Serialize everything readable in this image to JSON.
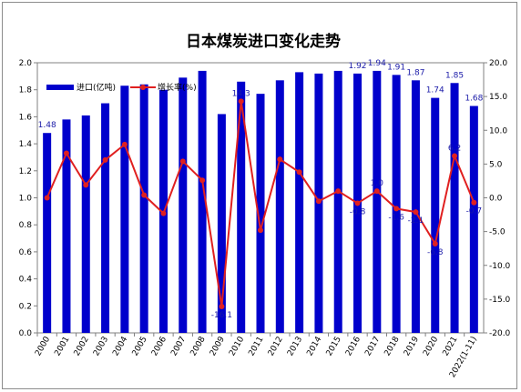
{
  "chart_data": {
    "type": "bar",
    "title": "日本煤炭进口变化走势",
    "categories": [
      "2000",
      "2001",
      "2002",
      "2003",
      "2004",
      "2005",
      "2006",
      "2007",
      "2008",
      "2009",
      "2010",
      "2011",
      "2012",
      "2013",
      "2014",
      "2015",
      "2016",
      "2017",
      "2018",
      "2019",
      "2020",
      "2021",
      "2022(1-11)"
    ],
    "series": [
      {
        "name": "进口(亿吨)",
        "type": "bar",
        "axis": "left",
        "color": "#0000cc",
        "values": [
          1.48,
          1.58,
          1.61,
          1.7,
          1.83,
          1.84,
          1.8,
          1.89,
          1.94,
          1.62,
          1.86,
          1.77,
          1.87,
          1.93,
          1.92,
          1.94,
          1.92,
          1.94,
          1.91,
          1.87,
          1.74,
          1.85,
          1.68
        ]
      },
      {
        "name": "增长率(%)",
        "type": "line",
        "axis": "right",
        "color": "#e02020",
        "values": [
          0.0,
          6.6,
          1.9,
          5.6,
          7.9,
          0.4,
          -2.3,
          5.4,
          2.6,
          -16.1,
          14.3,
          -4.8,
          5.7,
          3.8,
          -0.5,
          1.0,
          -0.8,
          1.0,
          -1.6,
          -2.1,
          -6.8,
          6.2,
          -0.7
        ]
      }
    ],
    "bar_labels": [
      {
        "index": 0,
        "text": "1.48"
      },
      {
        "index": 16,
        "text": "1.92"
      },
      {
        "index": 17,
        "text": "1.94"
      },
      {
        "index": 18,
        "text": "1.91"
      },
      {
        "index": 19,
        "text": "1.87"
      },
      {
        "index": 20,
        "text": "1.74"
      },
      {
        "index": 21,
        "text": "1.85"
      },
      {
        "index": 22,
        "text": "1.68"
      }
    ],
    "line_labels": [
      {
        "index": 9,
        "text": "-16.1"
      },
      {
        "index": 10,
        "text": "14.3"
      },
      {
        "index": 16,
        "text": "-0.8"
      },
      {
        "index": 17,
        "text": "1.0"
      },
      {
        "index": 18,
        "text": "-1.6"
      },
      {
        "index": 19,
        "text": "-2.1"
      },
      {
        "index": 20,
        "text": "-6.8"
      },
      {
        "index": 21,
        "text": "6.2"
      },
      {
        "index": 22,
        "text": "-0.7"
      }
    ],
    "y_left": {
      "min": 0.0,
      "max": 2.0,
      "step": 0.2,
      "ticks": [
        "0.0",
        "0.2",
        "0.4",
        "0.6",
        "0.8",
        "1.0",
        "1.2",
        "1.4",
        "1.6",
        "1.8",
        "2.0"
      ]
    },
    "y_right": {
      "min": -20.0,
      "max": 20.0,
      "step": 5.0,
      "ticks": [
        "-20.0",
        "-15.0",
        "-10.0",
        "-5.0",
        "0.0",
        "5.0",
        "10.0",
        "15.0",
        "20.0"
      ]
    },
    "grid": false,
    "legend_position": "top-left"
  }
}
